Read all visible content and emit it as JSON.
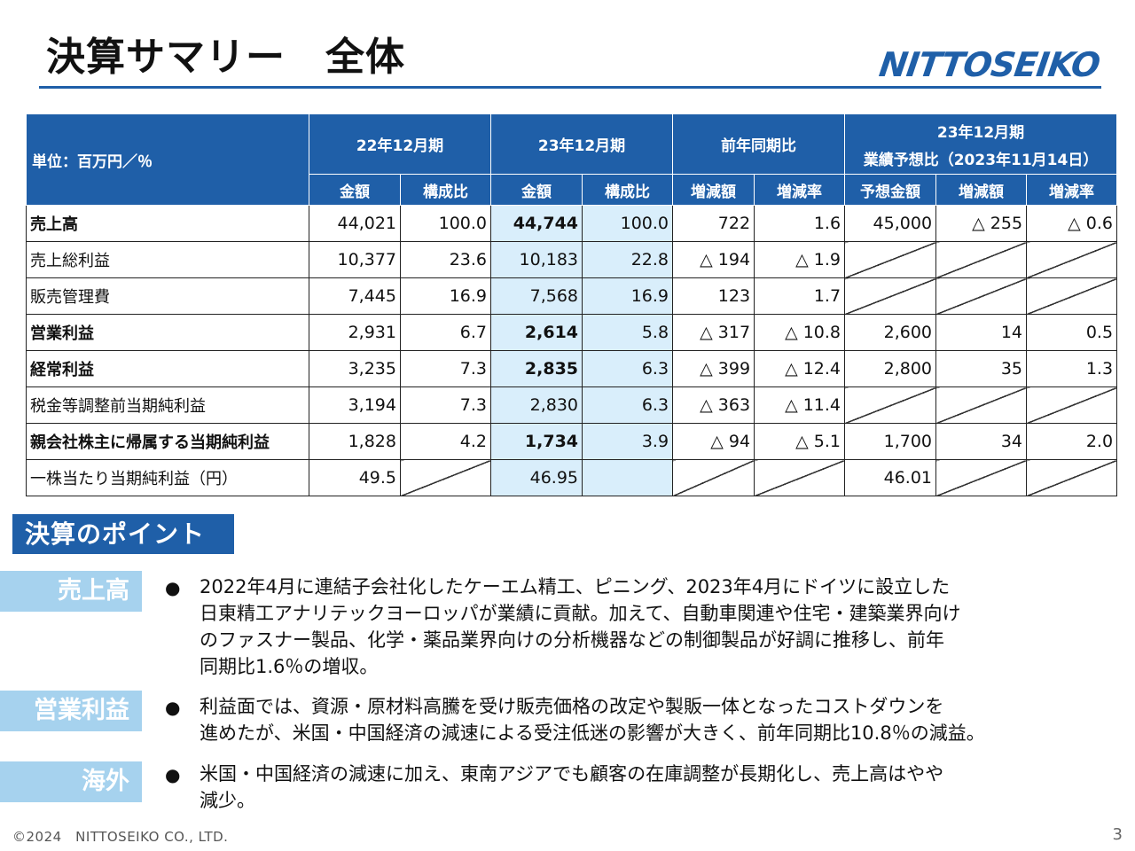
{
  "page": {
    "title": "決算サマリー　全体",
    "logo_text": "NITTOSEIKO",
    "footer": "©2024　NITTOSEIKO CO., LTD.",
    "page_number": "3",
    "colors": {
      "brand_blue": "#1f5fa8",
      "highlight": "#d9eefb",
      "tag": "#a6d2ee"
    }
  },
  "table": {
    "unit_label": "単位：百万円／％",
    "groups": {
      "g1": "22年12月期",
      "g2": "23年12月期",
      "g3": "前年同期比",
      "g4_line1": "23年12月期",
      "g4_line2": "業績予想比（2023年11月14日）"
    },
    "subheaders": [
      "金額",
      "構成比",
      "金額",
      "構成比",
      "増減額",
      "増減率",
      "予想金額",
      "増減額",
      "増減率"
    ],
    "rows": [
      {
        "label": "売上高",
        "bold": true,
        "cells": [
          "44,021",
          "100.0",
          "44,744",
          "100.0",
          "722",
          "1.6",
          "45,000",
          "△ 255",
          "△ 0.6"
        ]
      },
      {
        "label": "売上総利益",
        "bold": false,
        "cells": [
          "10,377",
          "23.6",
          "10,183",
          "22.8",
          "△ 194",
          "△ 1.9",
          "",
          "",
          ""
        ]
      },
      {
        "label": "販売管理費",
        "bold": false,
        "cells": [
          "7,445",
          "16.9",
          "7,568",
          "16.9",
          "123",
          "1.7",
          "",
          "",
          ""
        ]
      },
      {
        "label": "営業利益",
        "bold": true,
        "cells": [
          "2,931",
          "6.7",
          "2,614",
          "5.8",
          "△ 317",
          "△ 10.8",
          "2,600",
          "14",
          "0.5"
        ]
      },
      {
        "label": "経常利益",
        "bold": true,
        "cells": [
          "3,235",
          "7.3",
          "2,835",
          "6.3",
          "△ 399",
          "△ 12.4",
          "2,800",
          "35",
          "1.3"
        ]
      },
      {
        "label": "税金等調整前当期純利益",
        "bold": false,
        "cells": [
          "3,194",
          "7.3",
          "2,830",
          "6.3",
          "△ 363",
          "△ 11.4",
          "",
          "",
          ""
        ]
      },
      {
        "label": "親会社株主に帰属する当期純利益",
        "bold": true,
        "cells": [
          "1,828",
          "4.2",
          "1,734",
          "3.9",
          "△ 94",
          "△ 5.1",
          "1,700",
          "34",
          "2.0"
        ]
      },
      {
        "label": "一株当たり当期純利益（円）",
        "bold": false,
        "cells": [
          "49.5",
          "",
          "46.95",
          "",
          "",
          "",
          "46.01",
          "",
          ""
        ]
      }
    ]
  },
  "points": {
    "title": "決算のポイント",
    "items": [
      {
        "tag": "売上高",
        "text": "2022年4月に連結子会社化したケーエム精工、ピニング、2023年4月にドイツに設立した\n日東精工アナリテックヨーロッパが業績に貢献。加えて、自動車関連や住宅・建築業界向け\nのファスナー製品、化学・薬品業界向けの分析機器などの制御製品が好調に推移し、前年\n同期比1.6％の増収。"
      },
      {
        "tag": "営業利益",
        "text": "利益面では、資源・原材料高騰を受け販売価格の改定や製販一体となったコストダウンを\n進めたが、米国・中国経済の減速による受注低迷の影響が大きく、前年同期比10.8％の減益。"
      },
      {
        "tag": "海外",
        "text": "米国・中国経済の減速に加え、東南アジアでも顧客の在庫調整が長期化し、売上高はやや\n減少。"
      }
    ]
  }
}
